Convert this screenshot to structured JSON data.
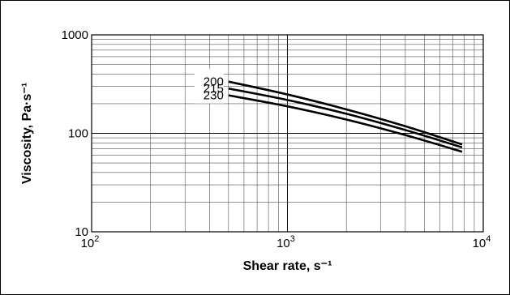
{
  "chart_data": {
    "type": "line",
    "title": "",
    "xlabel": "Shear rate, s⁻¹",
    "ylabel": "Viscosity, Pa·s⁻¹",
    "xscale": "log",
    "yscale": "log",
    "xlim": [
      100,
      10000
    ],
    "ylim": [
      10,
      1000
    ],
    "grid": true,
    "x_tick_labels": [
      {
        "value": 100,
        "base": "10",
        "exp": "2"
      },
      {
        "value": 1000,
        "base": "10",
        "exp": "3"
      },
      {
        "value": 10000,
        "base": "10",
        "exp": "4"
      }
    ],
    "y_tick_labels": [
      {
        "value": 1000,
        "text": "1000"
      },
      {
        "value": 100,
        "text": "100"
      },
      {
        "value": 10,
        "text": "10"
      }
    ],
    "series": [
      {
        "name": "200",
        "x": [
          500,
          1000,
          2000,
          4000,
          7800
        ],
        "y": [
          335,
          248,
          175,
          118,
          77
        ]
      },
      {
        "name": "215",
        "x": [
          500,
          1000,
          2000,
          4000,
          7800
        ],
        "y": [
          285,
          218,
          158,
          108,
          72
        ]
      },
      {
        "name": "230",
        "x": [
          500,
          1000,
          2000,
          4000,
          7800
        ],
        "y": [
          243,
          188,
          138,
          96,
          65
        ]
      }
    ]
  }
}
